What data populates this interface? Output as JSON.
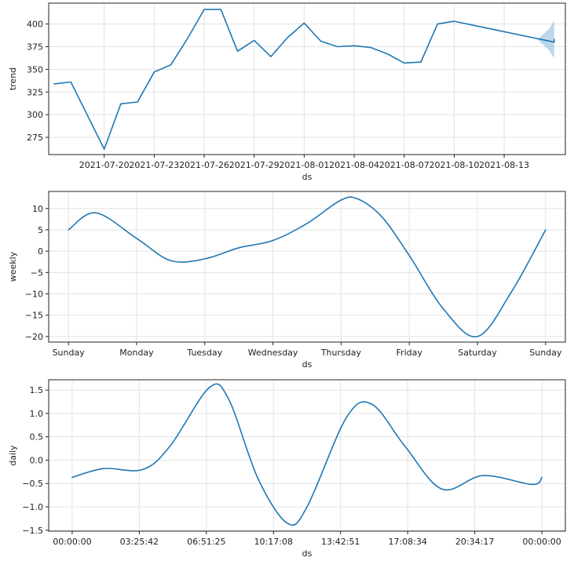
{
  "chart_data": [
    {
      "type": "line",
      "xlabel": "ds",
      "ylabel": "trend",
      "x_ticks": [
        "2021-07-20",
        "2021-07-23",
        "2021-07-26",
        "2021-07-29",
        "2021-08-01",
        "2021-08-04",
        "2021-08-07",
        "2021-08-10",
        "2021-08-13"
      ],
      "x_tick_days": [
        3,
        6,
        9,
        12,
        15,
        18,
        21,
        24,
        27
      ],
      "y_ticks": [
        275,
        300,
        325,
        350,
        375,
        400
      ],
      "xlim": [
        -0.33,
        30.67
      ],
      "ylim": [
        256,
        423
      ],
      "grid": true,
      "color": "#1f77b4",
      "band_color": "#a6c8e4",
      "series": [
        {
          "x": [
            0,
            1,
            2,
            3,
            4,
            5,
            6,
            7,
            8,
            9,
            10,
            11,
            12,
            13,
            14,
            15,
            16,
            17,
            18,
            19,
            20,
            21,
            22,
            23,
            24,
            30
          ],
          "y": [
            334,
            336,
            299,
            262,
            312,
            314,
            347,
            355,
            384,
            416,
            416,
            370,
            382,
            364,
            385,
            401,
            381,
            375,
            376,
            374,
            367,
            357,
            358,
            400,
            403,
            380
          ],
          "trend_end": 383
        }
      ],
      "interval": {
        "x": [
          29,
          29.7,
          30
        ],
        "lower": [
          383,
          371,
          362
        ],
        "upper": [
          383,
          395,
          404
        ]
      }
    },
    {
      "type": "line",
      "xlabel": "ds",
      "ylabel": "weekly",
      "x_ticks": [
        "Sunday",
        "Monday",
        "Tuesday",
        "Wednesday",
        "Thursday",
        "Friday",
        "Saturday",
        "Sunday"
      ],
      "y_ticks": [
        -20,
        -15,
        -10,
        -5,
        0,
        5,
        10
      ],
      "xlim": [
        -0.29,
        7.29
      ],
      "ylim": [
        -21.3,
        14.0
      ],
      "grid": true,
      "color": "#1f77b4",
      "series": [
        {
          "x": [
            0,
            0.4,
            1,
            1.5,
            2,
            2.5,
            3,
            3.5,
            4,
            4.25,
            4.6,
            5,
            5.5,
            6,
            6.5,
            7
          ],
          "y": [
            5,
            9,
            3,
            -2.2,
            -1.8,
            0.8,
            2.5,
            6.5,
            12,
            12.2,
            8,
            -1,
            -13.5,
            -20,
            -9.5,
            5
          ]
        }
      ]
    },
    {
      "type": "line",
      "xlabel": "ds",
      "ylabel": "daily",
      "x_ticks": [
        "00:00:00",
        "03:25:42",
        "06:51:25",
        "10:17:08",
        "13:42:51",
        "17:08:34",
        "20:34:17",
        "00:00:00"
      ],
      "y_ticks": [
        -1.5,
        -1.0,
        -0.5,
        0.0,
        0.5,
        1.0,
        1.5
      ],
      "xlim": [
        -1.2,
        25.2
      ],
      "ylim": [
        -1.52,
        1.72
      ],
      "grid": true,
      "color": "#1f77b4",
      "series": [
        {
          "x": [
            0,
            1.6,
            3.6,
            5,
            7,
            8,
            9.5,
            11,
            12,
            14,
            15.3,
            17,
            18.9,
            21,
            23.5,
            24
          ],
          "y": [
            -0.37,
            -0.18,
            -0.2,
            0.3,
            1.55,
            1.3,
            -0.4,
            -1.35,
            -1.0,
            0.9,
            1.2,
            0.3,
            -0.62,
            -0.33,
            -0.52,
            -0.37
          ]
        }
      ]
    }
  ]
}
